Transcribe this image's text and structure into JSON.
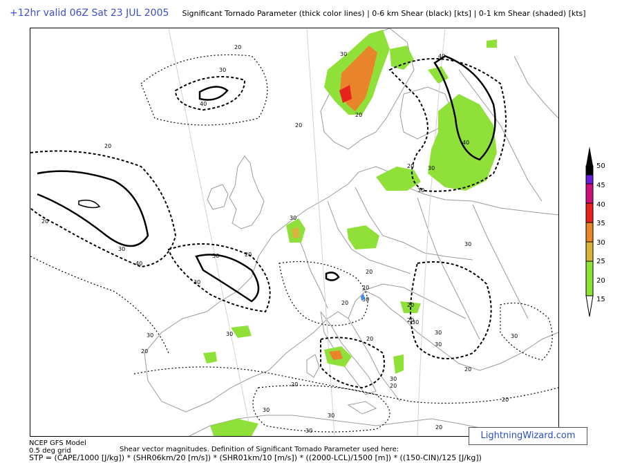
{
  "header": {
    "valid_time": "+12hr valid 06Z Sat 23 JUL 2005",
    "description": "Significant Tornado Parameter (thick color lines) | 0-6 km Shear (black) [kts] | 0-1 km Shear (shaded) [kts]"
  },
  "legend": {
    "levels": [
      "50",
      "45",
      "40",
      "35",
      "30",
      "25",
      "20",
      "15"
    ],
    "colors": [
      "#000000",
      "#6a1fd8",
      "#d0107a",
      "#e8231e",
      "#e8842a",
      "#d8b43c",
      "#90e03a",
      "#ffffff"
    ]
  },
  "contour_labels": [
    "20",
    "30",
    "40",
    "30",
    "20",
    "20",
    "30",
    "40",
    "20",
    "30",
    "20",
    "30",
    "40",
    "20",
    "30",
    "20",
    "30",
    "20",
    "30",
    "20",
    "30",
    "30",
    "20",
    "30",
    "20",
    "30",
    "20",
    "30",
    "30",
    "20",
    "30",
    "30",
    "20",
    "20",
    "20",
    "30",
    "30",
    "20",
    "20",
    "30",
    "20",
    "40",
    "30"
  ],
  "footer": {
    "model": "NCEP GFS Model",
    "grid": "0.5 deg grid",
    "shear_note": "Shear vector magnitudes. Definition of Significant Tornado Parameter used here:",
    "formula": "STP = (CAPE/1000 [J/kg]) * (SHR06km/20 [m/s]) * (SHR01km/10 [m/s]) * ((2000-LCL)/1500 [m]) * ((150-CIN)/125 [J/kg])"
  },
  "brand": "LightningWizard.com",
  "colors": {
    "shade_green": "#90e03a",
    "shade_orange": "#e8842a",
    "shade_red": "#e8231e",
    "header_blue": "#3a4fd0"
  }
}
